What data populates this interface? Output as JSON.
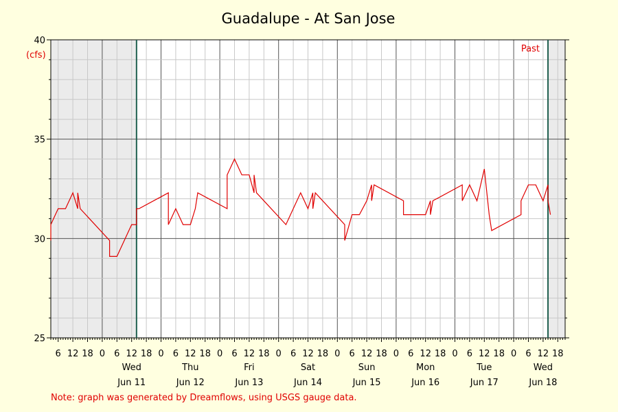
{
  "chart_data": {
    "type": "line",
    "title": "Guadalupe - At San Jose",
    "unit_label": "(cfs)",
    "past_label": "Past",
    "note": "Note: graph was generated by Dreamflows, using USGS gauge data.",
    "ylim": [
      25,
      40
    ],
    "y_ticks": [
      25,
      30,
      35,
      40
    ],
    "x_range_hours": [
      "2025-06-10T03:00",
      "2025-06-18T21:00"
    ],
    "hour_tick_labels": [
      "6",
      "12",
      "18",
      "0",
      "6",
      "12",
      "18",
      "0",
      "6",
      "12",
      "18",
      "0",
      "6",
      "12",
      "18",
      "0",
      "6",
      "12",
      "18",
      "0",
      "6",
      "12",
      "18",
      "0",
      "6",
      "12",
      "18",
      "0",
      "6",
      "12",
      "18",
      "0",
      "6",
      "12",
      "18"
    ],
    "days": [
      {
        "weekday": "Wed",
        "date": "Jun 11"
      },
      {
        "weekday": "Thu",
        "date": "Jun 12"
      },
      {
        "weekday": "Fri",
        "date": "Jun 13"
      },
      {
        "weekday": "Sat",
        "date": "Jun 14"
      },
      {
        "weekday": "Sun",
        "date": "Jun 15"
      },
      {
        "weekday": "Mon",
        "date": "Jun 16"
      },
      {
        "weekday": "Tue",
        "date": "Jun 17"
      },
      {
        "weekday": "Wed",
        "date": "Jun 18"
      }
    ],
    "grid": true,
    "series_color": "#e00000",
    "marker_color": "#1f5f4f",
    "shade_color": "#ebebeb",
    "markers_hours": [
      "2025-06-11T14:00",
      "2025-06-18T14:00"
    ],
    "series": [
      {
        "x_hours": [
          "2025-06-10T03:00",
          "2025-06-10T03:00",
          "2025-06-10T06:00",
          "2025-06-10T09:00",
          "2025-06-10T12:00",
          "2025-06-10T14:00",
          "2025-06-10T14:00",
          "2025-06-10T15:00",
          "2025-06-11T03:00",
          "2025-06-11T03:00",
          "2025-06-11T06:00",
          "2025-06-11T09:00",
          "2025-06-11T12:00",
          "2025-06-11T14:00",
          "2025-06-11T14:00",
          "2025-06-11T15:00",
          "2025-06-12T03:00",
          "2025-06-12T03:00",
          "2025-06-12T06:00",
          "2025-06-12T09:00",
          "2025-06-12T12:00",
          "2025-06-12T14:00",
          "2025-06-12T14:00",
          "2025-06-12T15:00",
          "2025-06-13T03:00",
          "2025-06-13T03:00",
          "2025-06-13T06:00",
          "2025-06-13T09:00",
          "2025-06-13T12:00",
          "2025-06-13T14:00",
          "2025-06-13T14:00",
          "2025-06-13T15:00",
          "2025-06-14T03:00",
          "2025-06-14T03:00",
          "2025-06-14T06:00",
          "2025-06-14T09:00",
          "2025-06-14T12:00",
          "2025-06-14T14:00",
          "2025-06-14T14:00",
          "2025-06-14T15:00",
          "2025-06-15T03:00",
          "2025-06-15T03:00",
          "2025-06-15T06:00",
          "2025-06-15T09:00",
          "2025-06-15T12:00",
          "2025-06-15T14:00",
          "2025-06-15T14:00",
          "2025-06-15T15:00",
          "2025-06-16T03:00",
          "2025-06-16T03:00",
          "2025-06-16T06:00",
          "2025-06-16T09:00",
          "2025-06-16T12:00",
          "2025-06-16T14:00",
          "2025-06-16T14:00",
          "2025-06-16T15:00",
          "2025-06-17T03:00",
          "2025-06-17T03:00",
          "2025-06-17T06:00",
          "2025-06-17T09:00",
          "2025-06-17T12:00",
          "2025-06-17T14:00",
          "2025-06-17T14:00",
          "2025-06-17T15:00",
          "2025-06-18T03:00",
          "2025-06-18T03:00",
          "2025-06-18T06:00",
          "2025-06-18T09:00",
          "2025-06-18T12:00",
          "2025-06-18T14:00",
          "2025-06-18T14:00",
          "2025-06-18T15:00"
        ],
        "values": [
          29.9,
          30.7,
          31.5,
          31.5,
          32.3,
          31.5,
          32.3,
          31.5,
          29.9,
          29.1,
          29.1,
          29.9,
          30.7,
          30.7,
          31.5,
          31.5,
          32.3,
          30.7,
          31.5,
          30.7,
          30.7,
          31.5,
          31.5,
          32.3,
          31.5,
          33.2,
          34.0,
          33.2,
          33.2,
          32.3,
          33.2,
          32.3,
          30.7,
          30.7,
          31.5,
          32.3,
          31.5,
          32.3,
          31.5,
          32.3,
          30.7,
          29.9,
          31.2,
          31.2,
          31.9,
          32.7,
          31.9,
          32.7,
          31.9,
          31.2,
          31.2,
          31.2,
          31.2,
          31.9,
          31.2,
          31.9,
          32.7,
          31.9,
          32.7,
          31.9,
          33.5,
          31.2,
          31.2,
          30.4,
          31.2,
          31.9,
          32.7,
          32.7,
          31.9,
          32.7,
          31.9,
          31.2
        ]
      }
    ]
  }
}
